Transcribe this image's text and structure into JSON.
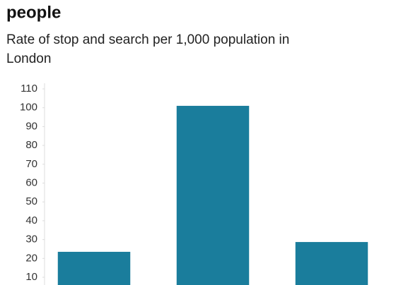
{
  "chart_data": {
    "type": "bar",
    "title": "people",
    "subtitle": [
      "Rate of stop and search per 1,000 population in",
      "London"
    ],
    "categories": [
      null,
      null,
      null
    ],
    "values": [
      23.5,
      101,
      28.7
    ],
    "color": "#1a7d9c",
    "ylim": [
      0,
      110
    ],
    "yticks": [
      10,
      20,
      30,
      40,
      50,
      60,
      70,
      80,
      90,
      100,
      110
    ]
  }
}
